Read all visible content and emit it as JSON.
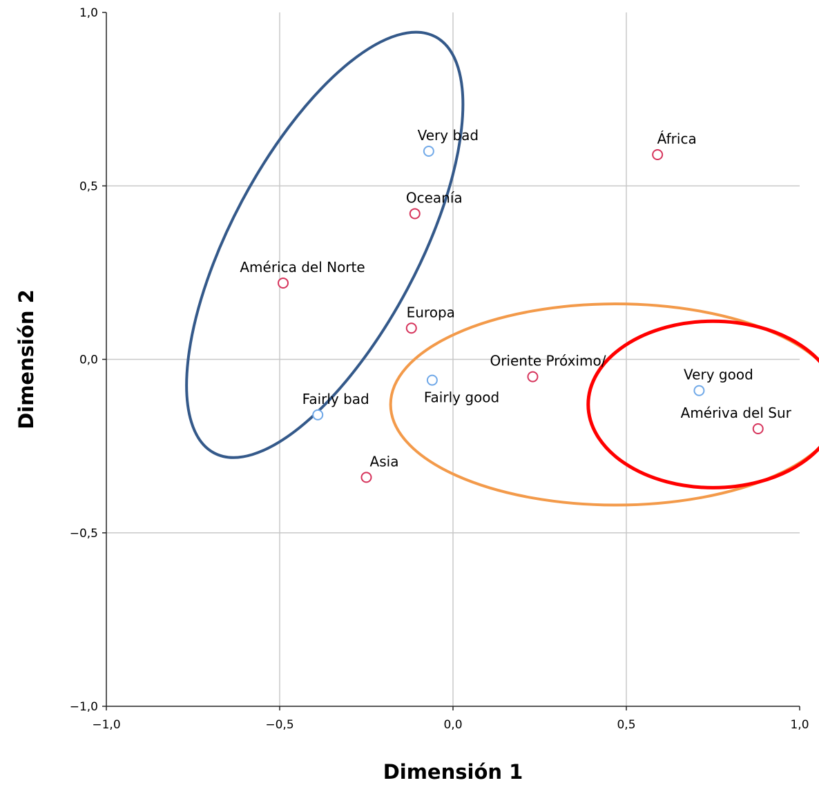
{
  "chart_data": {
    "type": "scatter",
    "title": "",
    "xlabel": "Dimensión 1",
    "ylabel": "Dimensión 2",
    "xlim": [
      -1.0,
      1.0
    ],
    "ylim": [
      -1.0,
      1.0
    ],
    "grid": true,
    "xticks": [
      {
        "value": -1.0,
        "label": "−1,0"
      },
      {
        "value": -0.5,
        "label": "−0,5"
      },
      {
        "value": 0.0,
        "label": "0,0"
      },
      {
        "value": 0.5,
        "label": "0,5"
      },
      {
        "value": 1.0,
        "label": "1,0"
      }
    ],
    "yticks": [
      {
        "value": -1.0,
        "label": "−1,0"
      },
      {
        "value": -0.5,
        "label": "−0,5"
      },
      {
        "value": 0.0,
        "label": "0,0"
      },
      {
        "value": 0.5,
        "label": "0,5"
      },
      {
        "value": 1.0,
        "label": "1,0"
      }
    ],
    "series": [
      {
        "color": "#6fa8e8",
        "points": [
          {
            "label": "Very bad",
            "x": -0.07,
            "y": 0.6
          },
          {
            "label": "Fairly bad",
            "x": -0.39,
            "y": -0.16
          },
          {
            "label": "Fairly good",
            "x": -0.06,
            "y": -0.06
          },
          {
            "label": "Very good",
            "x": 0.71,
            "y": -0.09
          }
        ]
      },
      {
        "color": "#d6335b",
        "points": [
          {
            "label": "África",
            "x": 0.59,
            "y": 0.59
          },
          {
            "label": "Oceanía",
            "x": -0.11,
            "y": 0.42
          },
          {
            "label": "América del Norte",
            "x": -0.49,
            "y": 0.22
          },
          {
            "label": "Europa",
            "x": -0.12,
            "y": 0.09
          },
          {
            "label": "Oriente Próximo/",
            "x": 0.23,
            "y": -0.05
          },
          {
            "label": "Amériva del Sur",
            "x": 0.88,
            "y": -0.2
          },
          {
            "label": "Asia",
            "x": -0.25,
            "y": -0.34
          }
        ]
      }
    ],
    "annotations": [
      {
        "shape": "ellipse",
        "color": "#34598a",
        "cx": -0.37,
        "cy": 0.33,
        "rx": 0.68,
        "ry": 0.27,
        "rotation_deg": -62
      },
      {
        "shape": "ellipse",
        "color": "#f39a4a",
        "cx": 0.47,
        "cy": -0.13,
        "rx": 0.65,
        "ry": 0.29,
        "rotation_deg": 0
      },
      {
        "shape": "ellipse",
        "color": "#ff0000",
        "cx": 0.75,
        "cy": -0.13,
        "rx": 0.36,
        "ry": 0.24,
        "rotation_deg": 0
      }
    ]
  }
}
